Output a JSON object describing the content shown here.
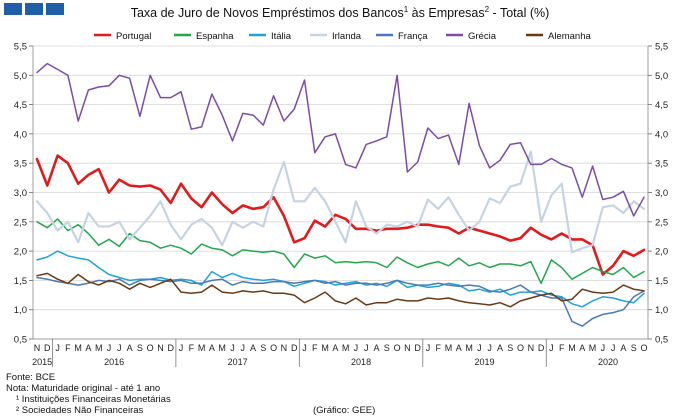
{
  "brand": {
    "logo": "GEE logo blocks",
    "color": "#1f5fa8"
  },
  "header": {
    "title_pre": "Taxa de Juro de Novos Empréstimos dos Bancos",
    "sup1": "1",
    "title_mid": " às Empresas",
    "sup2": "2",
    "title_post": " - Total (%)"
  },
  "footer": {
    "source": "Fonte: BCE",
    "note": "Nota: Maturidade original - até 1 ano",
    "note1": "¹ Instituições Financeiras Monetárias",
    "note2": "² Sociedades Não Financeiras",
    "credit": "(Gráfico: GEE)"
  },
  "chart_data": {
    "type": "line",
    "title": "Taxa de Juro de Novos Empréstimos dos Bancos¹ às Empresas² - Total (%)",
    "ylim": [
      0.5,
      5.5
    ],
    "yticks": [
      "0,5",
      "1,0",
      "1,5",
      "2,0",
      "2,5",
      "3,0",
      "3,5",
      "4,0",
      "4,5",
      "5,0",
      "5,5"
    ],
    "grid": "horizontal",
    "legend_position": "top",
    "x_months": [
      "N",
      "D",
      "J",
      "F",
      "M",
      "A",
      "M",
      "J",
      "J",
      "A",
      "S",
      "O",
      "N",
      "D",
      "J",
      "F",
      "M",
      "A",
      "M",
      "J",
      "J",
      "A",
      "S",
      "O",
      "N",
      "D",
      "J",
      "F",
      "M",
      "A",
      "M",
      "J",
      "J",
      "A",
      "S",
      "O",
      "N",
      "D",
      "J",
      "F",
      "M",
      "A",
      "M",
      "J",
      "J",
      "A",
      "S",
      "O",
      "N",
      "D",
      "J",
      "F",
      "M",
      "A",
      "M",
      "J",
      "J",
      "A",
      "S",
      "O"
    ],
    "x_years": [
      {
        "label": "2015",
        "index": 0.5
      },
      {
        "label": "2016",
        "index": 7.5
      },
      {
        "label": "2017",
        "index": 19.5
      },
      {
        "label": "2018",
        "index": 31.5
      },
      {
        "label": "2019",
        "index": 43.5
      },
      {
        "label": "2020",
        "index": 55.5
      }
    ],
    "year_dividers": [
      1.5,
      13.5,
      25.5,
      37.5,
      49.5
    ],
    "series": [
      {
        "name": "Portugal",
        "color": "#e31a1c",
        "width": 2.6,
        "values": [
          3.57,
          3.12,
          3.63,
          3.5,
          3.15,
          3.3,
          3.4,
          3.0,
          3.22,
          3.12,
          3.1,
          3.12,
          3.05,
          2.82,
          3.15,
          2.9,
          2.75,
          3.0,
          2.8,
          2.65,
          2.78,
          2.72,
          2.75,
          2.92,
          2.6,
          2.15,
          2.22,
          2.52,
          2.42,
          2.62,
          2.55,
          2.38,
          2.38,
          2.35,
          2.38,
          2.38,
          2.4,
          2.45,
          2.45,
          2.42,
          2.4,
          2.3,
          2.4,
          2.35,
          2.3,
          2.25,
          2.18,
          2.22,
          2.4,
          2.28,
          2.2,
          2.3,
          2.2,
          2.2,
          2.1,
          1.6,
          1.75,
          2.0,
          1.92,
          2.02
        ]
      },
      {
        "name": "Espanha",
        "color": "#21a84a",
        "width": 1.5,
        "values": [
          2.5,
          2.4,
          2.55,
          2.35,
          2.45,
          2.3,
          2.1,
          2.2,
          2.08,
          2.3,
          2.18,
          2.15,
          2.05,
          2.1,
          2.05,
          1.95,
          2.12,
          2.05,
          2.02,
          1.92,
          2.02,
          2.0,
          1.98,
          2.0,
          1.95,
          1.72,
          1.95,
          1.88,
          1.92,
          1.8,
          1.82,
          1.8,
          1.82,
          1.8,
          1.72,
          1.9,
          1.8,
          1.72,
          1.78,
          1.82,
          1.75,
          1.88,
          1.75,
          1.8,
          1.72,
          1.78,
          1.78,
          1.75,
          1.82,
          1.45,
          1.85,
          1.72,
          1.52,
          1.62,
          1.72,
          1.65,
          1.6,
          1.72,
          1.55,
          1.65
        ]
      },
      {
        "name": "Itália",
        "color": "#1fa3d9",
        "width": 1.5,
        "values": [
          1.85,
          1.9,
          2.0,
          1.92,
          1.88,
          1.85,
          1.72,
          1.6,
          1.55,
          1.5,
          1.52,
          1.52,
          1.55,
          1.5,
          1.52,
          1.5,
          1.42,
          1.65,
          1.55,
          1.62,
          1.55,
          1.52,
          1.5,
          1.52,
          1.48,
          1.4,
          1.45,
          1.5,
          1.48,
          1.42,
          1.45,
          1.48,
          1.42,
          1.45,
          1.4,
          1.5,
          1.38,
          1.42,
          1.38,
          1.4,
          1.45,
          1.42,
          1.32,
          1.35,
          1.3,
          1.35,
          1.25,
          1.3,
          1.3,
          1.32,
          1.25,
          1.22,
          1.1,
          1.05,
          1.15,
          1.22,
          1.2,
          1.15,
          1.12,
          1.28
        ]
      },
      {
        "name": "Irlanda",
        "color": "#c5d3e2",
        "width": 2.2,
        "values": [
          2.85,
          2.65,
          2.35,
          2.5,
          2.15,
          2.65,
          2.42,
          2.42,
          2.5,
          2.2,
          2.4,
          2.6,
          2.85,
          2.45,
          2.2,
          2.45,
          2.55,
          2.4,
          2.1,
          2.5,
          2.4,
          2.5,
          2.42,
          3.05,
          3.52,
          2.85,
          2.85,
          3.08,
          2.85,
          2.5,
          2.15,
          2.85,
          2.42,
          2.3,
          2.45,
          2.42,
          2.5,
          2.42,
          2.88,
          2.72,
          2.92,
          2.62,
          2.35,
          2.5,
          2.9,
          2.82,
          3.1,
          3.15,
          3.7,
          2.5,
          2.95,
          3.15,
          1.98,
          2.05,
          2.1,
          2.75,
          2.78,
          2.65,
          2.85,
          2.72
        ]
      },
      {
        "name": "França",
        "color": "#4a79b9",
        "width": 1.5,
        "values": [
          1.55,
          1.52,
          1.48,
          1.45,
          1.42,
          1.45,
          1.5,
          1.48,
          1.52,
          1.42,
          1.5,
          1.52,
          1.5,
          1.48,
          1.5,
          1.45,
          1.45,
          1.5,
          1.52,
          1.42,
          1.48,
          1.45,
          1.45,
          1.48,
          1.48,
          1.45,
          1.48,
          1.5,
          1.45,
          1.48,
          1.42,
          1.45,
          1.45,
          1.42,
          1.45,
          1.5,
          1.45,
          1.42,
          1.42,
          1.45,
          1.42,
          1.4,
          1.42,
          1.4,
          1.32,
          1.3,
          1.35,
          1.42,
          1.3,
          1.25,
          1.2,
          1.2,
          0.8,
          0.72,
          0.85,
          0.92,
          0.95,
          1.0,
          1.22,
          1.32
        ]
      },
      {
        "name": "Grécia",
        "color": "#7c4ba8",
        "width": 1.5,
        "values": [
          5.05,
          5.2,
          5.1,
          5.0,
          4.22,
          4.75,
          4.8,
          4.82,
          5.0,
          4.95,
          4.3,
          5.0,
          4.62,
          4.62,
          4.72,
          4.08,
          4.12,
          4.68,
          4.32,
          3.88,
          4.35,
          4.32,
          4.15,
          4.65,
          4.22,
          4.42,
          4.92,
          3.68,
          3.95,
          4.0,
          3.48,
          3.42,
          3.82,
          3.88,
          3.95,
          5.0,
          3.35,
          3.52,
          4.1,
          3.92,
          3.98,
          3.48,
          4.52,
          3.8,
          3.42,
          3.55,
          3.82,
          3.85,
          3.48,
          3.48,
          3.58,
          3.48,
          3.42,
          2.92,
          3.45,
          2.88,
          2.92,
          3.02,
          2.6,
          2.92
        ]
      },
      {
        "name": "Alemanha",
        "color": "#6b3a14",
        "width": 1.5,
        "values": [
          1.58,
          1.62,
          1.52,
          1.45,
          1.6,
          1.48,
          1.42,
          1.5,
          1.45,
          1.35,
          1.45,
          1.38,
          1.45,
          1.52,
          1.3,
          1.28,
          1.3,
          1.42,
          1.3,
          1.28,
          1.32,
          1.3,
          1.32,
          1.28,
          1.28,
          1.25,
          1.12,
          1.2,
          1.3,
          1.15,
          1.1,
          1.2,
          1.08,
          1.12,
          1.12,
          1.18,
          1.15,
          1.15,
          1.2,
          1.18,
          1.2,
          1.15,
          1.12,
          1.1,
          1.08,
          1.12,
          1.05,
          1.15,
          1.2,
          1.25,
          1.28,
          1.15,
          1.18,
          1.35,
          1.3,
          1.28,
          1.3,
          1.42,
          1.35,
          1.32
        ]
      }
    ]
  }
}
